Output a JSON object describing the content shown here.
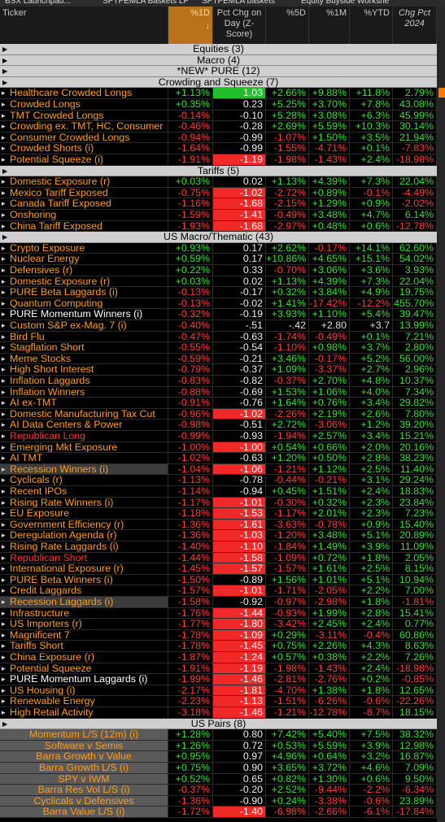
{
  "tabs": [
    "BSX Launchpad...",
    "SPTPEMLA Baskets LP",
    "SPTPEMLA baskets",
    "Equity Buyside Workshe"
  ],
  "header": {
    "columns": [
      "Ticker",
      "%1D",
      "Pct Chg on Day (Z-Score)",
      "%5D",
      "%1M",
      "%YTD",
      "Chg Pct 2024"
    ]
  },
  "groups": [
    {
      "title": "Equities (3)"
    },
    {
      "title": "Macro (4)"
    },
    {
      "title": "*NEW* PURE (12)"
    },
    {
      "title": "Crowding and Squeeze (7)",
      "rows": [
        {
          "name": "Healthcare Crowded Longs",
          "values": [
            "+1.13%",
            "1.03",
            "+2.66%",
            "+9.88%",
            "+11.8%",
            "2.79%"
          ]
        },
        {
          "name": "Crowded Longs",
          "values": [
            "+0.35%",
            "0.23",
            "+5.25%",
            "+3.70%",
            "+7.8%",
            "43.08%"
          ]
        },
        {
          "name": "TMT Crowded Longs",
          "values": [
            "-0.14%",
            "-0.10",
            "+5.28%",
            "+3.08%",
            "+6.3%",
            "45.99%"
          ]
        },
        {
          "name": "Crowding ex. TMT, HC, Consumer",
          "values": [
            "-0.46%",
            "-0.28",
            "+2.69%",
            "+5.59%",
            "+10.3%",
            "30.14%"
          ]
        },
        {
          "name": "Consumer Crowded Longs",
          "values": [
            "-0.94%",
            "-0.99",
            "-1.07%",
            "+1.50%",
            "+3.5%",
            "21.94%"
          ]
        },
        {
          "name": "Crowded Shorts (i)",
          "values": [
            "-1.64%",
            "-0.99",
            "-1.55%",
            "-4.71%",
            "+0.1%",
            "-7.83%"
          ]
        },
        {
          "name": "Potential Squeeze (i)",
          "values": [
            "-1.91%",
            "-1.19",
            "-1.98%",
            "-1.43%",
            "+2.4%",
            "-18.98%"
          ]
        }
      ]
    },
    {
      "title": "Tariffs (5)",
      "rows": [
        {
          "name": "Domestic Exposure (r)",
          "values": [
            "+0.03%",
            "0.02",
            "+1.13%",
            "+4.39%",
            "+7.3%",
            "22.04%"
          ]
        },
        {
          "name": "Mexico Tariff Exposed",
          "values": [
            "-0.75%",
            "-1.02",
            "-2.72%",
            "+0.89%",
            "-0.1%",
            "-4.49%"
          ]
        },
        {
          "name": "Canada Tariff Exposed",
          "values": [
            "-1.16%",
            "-1.68",
            "-2.15%",
            "+1.29%",
            "+0.9%",
            "-2.02%"
          ]
        },
        {
          "name": "Onshoring",
          "values": [
            "-1.59%",
            "-1.41",
            "-0.49%",
            "+3.48%",
            "+4.7%",
            "6.14%"
          ]
        },
        {
          "name": "China Tariff Exposed",
          "values": [
            "-1.93%",
            "-1.68",
            "-2.97%",
            "+0.48%",
            "+0.6%",
            "-12.78%"
          ]
        }
      ]
    },
    {
      "title": "US Macro/Thematic (43)",
      "rows": [
        {
          "name": "Crypto Exposure",
          "values": [
            "+0.93%",
            "0.17",
            "+2.62%",
            "-0.17%",
            "+14.1%",
            "62.60%"
          ]
        },
        {
          "name": "Nuclear Energy",
          "values": [
            "+0.59%",
            "0.17",
            "+10.86%",
            "+4.65%",
            "+15.1%",
            "54.02%"
          ]
        },
        {
          "name": "Defensives (r)",
          "values": [
            "+0.22%",
            "0.33",
            "-0.70%",
            "+3.06%",
            "+3.6%",
            "3.93%"
          ]
        },
        {
          "name": "Domestic Exposure (r)",
          "values": [
            "+0.03%",
            "0.02",
            "+1.13%",
            "+4.39%",
            "+7.3%",
            "22.04%"
          ]
        },
        {
          "name": "PURE Beta Laggards (i)",
          "values": [
            "-0.13%",
            "-0.17",
            "+0.32%",
            "+3.84%",
            "+4.9%",
            "19.75%"
          ]
        },
        {
          "name": "Quantum Computing",
          "values": [
            "-0.13%",
            "-0.02",
            "+1.41%",
            "-17.42%",
            "-12.2%",
            "455.70%"
          ]
        },
        {
          "name": "PURE Momentum Winners (i)",
          "name_color": "#ffffff",
          "values": [
            "-0.32%",
            "-0.19",
            "+3.93%",
            "+1.10%",
            "+5.4%",
            "39.47%"
          ]
        },
        {
          "name": "Custom S&P ex-Mag. 7 (i)",
          "values": [
            "-0.40%",
            "-.51",
            "-.42",
            "+2.80",
            "+3.7",
            "13.99%"
          ]
        },
        {
          "name": "Bird Flu",
          "values": [
            "-0.47%",
            "-0.63",
            "-1.74%",
            "-0.49%",
            "+0.1%",
            "7.21%"
          ]
        },
        {
          "name": "Stagflation Short",
          "values": [
            "-0.55%",
            "-0.54",
            "-1.10%",
            "+0.98%",
            "+3.7%",
            "2.80%"
          ]
        },
        {
          "name": "Meme Stocks",
          "values": [
            "-0.59%",
            "-0.21",
            "+3.46%",
            "-0.17%",
            "+5.2%",
            "56.00%"
          ]
        },
        {
          "name": "High Short Interest",
          "values": [
            "-0.79%",
            "-0.37",
            "+1.09%",
            "-3.37%",
            "+2.7%",
            "2.96%"
          ]
        },
        {
          "name": "Inflation Laggards",
          "values": [
            "-0.83%",
            "-0.82",
            "-0.37%",
            "+2.70%",
            "+4.8%",
            "10.37%"
          ]
        },
        {
          "name": "Inflation Winners",
          "values": [
            "-0.88%",
            "-0.69",
            "+1.53%",
            "+1.06%",
            "+4.0%",
            "7.34%"
          ]
        },
        {
          "name": "AI ex-TMT",
          "values": [
            "-0.91%",
            "-0.76",
            "+1.64%",
            "+0.76%",
            "+3.4%",
            "29.82%"
          ]
        },
        {
          "name": "Domestic Manufacturing Tax Cut",
          "values": [
            "-0.96%",
            "-1.02",
            "-2.26%",
            "+2.19%",
            "+2.6%",
            "7.80%"
          ]
        },
        {
          "name": "AI Data Centers & Power",
          "values": [
            "-0.98%",
            "-0.51",
            "+2.72%",
            "-3.06%",
            "+1.2%",
            "39.20%"
          ]
        },
        {
          "name": "Republican Long",
          "name_color": "#ff3030",
          "values": [
            "-0.99%",
            "-0.93",
            "-1.94%",
            "+2.57%",
            "+3.4%",
            "15.21%"
          ]
        },
        {
          "name": "Emerging Mkt Exposure",
          "values": [
            "-1.00%",
            "-1.00",
            "+0.54%",
            "+0.66%",
            "+2.0%",
            "20.16%"
          ]
        },
        {
          "name": "AI TMT",
          "values": [
            "-1.02%",
            "-0.63",
            "+1.20%",
            "+0.50%",
            "+2.8%",
            "38.23%"
          ]
        },
        {
          "name": "Recession Winners (i)",
          "name_bg": "#3c3c3c",
          "values": [
            "-1.04%",
            "-1.06",
            "-1.21%",
            "+1.12%",
            "+2.5%",
            "11.40%"
          ]
        },
        {
          "name": "Cyclicals (r)",
          "values": [
            "-1.13%",
            "-0.78",
            "-0.44%",
            "-0.21%",
            "+3.1%",
            "29.24%"
          ]
        },
        {
          "name": "Recent IPOs",
          "values": [
            "-1.14%",
            "-0.94",
            "+0.45%",
            "+1.51%",
            "+2.4%",
            "18.83%"
          ]
        },
        {
          "name": "Rising Rate Winners (i)",
          "values": [
            "-1.17%",
            "-1.01",
            "-0.30%",
            "+0.32%",
            "+2.3%",
            "23.84%"
          ]
        },
        {
          "name": "EU Exposure",
          "values": [
            "-1.18%",
            "-1.53",
            "-1.17%",
            "+2.01%",
            "+2.3%",
            "7.23%"
          ]
        },
        {
          "name": "Government Efficiency (r)",
          "values": [
            "-1.36%",
            "-1.61",
            "-3.63%",
            "-0.78%",
            "+0.9%",
            "15.40%"
          ]
        },
        {
          "name": "Deregulation Agenda (r)",
          "values": [
            "-1.36%",
            "-1.03",
            "-1.20%",
            "+3.48%",
            "+5.1%",
            "20.89%"
          ]
        },
        {
          "name": "Rising Rate Laggards (i)",
          "values": [
            "-1.40%",
            "-1.10",
            "-1.84%",
            "+1.49%",
            "+3.9%",
            "11.09%"
          ]
        },
        {
          "name": "Republican Short",
          "name_color": "#ff3030",
          "values": [
            "-1.44%",
            "-1.58",
            "-1.09%",
            "+0.72%",
            "+1.8%",
            "2.05%"
          ]
        },
        {
          "name": "International Exposure (r)",
          "values": [
            "-1.45%",
            "-1.57",
            "-1.57%",
            "+1.61%",
            "+2.5%",
            "8.15%"
          ]
        },
        {
          "name": "PURE Beta Winners (i)",
          "values": [
            "-1.50%",
            "-0.89",
            "+1.56%",
            "+1.01%",
            "+5.1%",
            "10.94%"
          ]
        },
        {
          "name": "Credit Laggards",
          "values": [
            "-1.57%",
            "-1.01",
            "-1.71%",
            "-2.05%",
            "+2.2%",
            "7.00%"
          ]
        },
        {
          "name": "Recession Laggards (i)",
          "name_bg": "#3c3c3c",
          "values": [
            "-1.58%",
            "-0.92",
            "-0.97%",
            "-2.98%",
            "+1.8%",
            "-1.81%"
          ]
        },
        {
          "name": "Infrastructure",
          "values": [
            "-1.76%",
            "-1.44",
            "-0.93%",
            "+1.99%",
            "+2.8%",
            "15.41%"
          ]
        },
        {
          "name": "US Importers (r)",
          "values": [
            "-1.77%",
            "-1.80",
            "-3.42%",
            "+2.45%",
            "+2.4%",
            "0.77%"
          ]
        },
        {
          "name": "Magnificent 7",
          "values": [
            "-1.78%",
            "-1.09",
            "+0.29%",
            "-3.11%",
            "-0.4%",
            "60.86%"
          ]
        },
        {
          "name": "Tariffs Short",
          "values": [
            "-1.78%",
            "-1.45",
            "+0.75%",
            "+2.26%",
            "+4.3%",
            "8.63%"
          ]
        },
        {
          "name": "China Exposure (r)",
          "values": [
            "-1.87%",
            "-1.24",
            "+0.57%",
            "+0.38%",
            "+2.2%",
            "7.26%"
          ]
        },
        {
          "name": "Potential Squeeze",
          "values": [
            "-1.91%",
            "-1.19",
            "-1.98%",
            "-1.43%",
            "+2.4%",
            "-18.98%"
          ]
        },
        {
          "name": "PURE Momentum Laggards (i)",
          "name_color": "#ffffff",
          "values": [
            "-1.99%",
            "-1.46",
            "-2.81%",
            "-2.76%",
            "+0.2%",
            "-0.85%"
          ]
        },
        {
          "name": "US Housing (i)",
          "values": [
            "-2.17%",
            "-1.81",
            "-4.70%",
            "+1.38%",
            "+1.8%",
            "12.65%"
          ]
        },
        {
          "name": "Renewable Energy",
          "values": [
            "-2.23%",
            "-1.13",
            "-1.51%",
            "-6.26%",
            "-0.6%",
            "-22.26%"
          ]
        },
        {
          "name": "High Retail Activity",
          "values": [
            "-3.18%",
            "-1.46",
            "-1.21%",
            "-12.78%",
            "-8.7%",
            "18.15%"
          ]
        }
      ]
    },
    {
      "title": "US Pairs (8)",
      "pairs": true,
      "rows": [
        {
          "name": "Momentum L/S (12m) (i)",
          "values": [
            "+1.28%",
            "0.80",
            "+7.42%",
            "+5.40%",
            "+7.5%",
            "38.32%"
          ]
        },
        {
          "name": "Software v Semis",
          "values": [
            "+1.26%",
            "0.72",
            "+0.53%",
            "+5.59%",
            "+3.9%",
            "12.98%"
          ]
        },
        {
          "name": "Barra Growth v Value",
          "values": [
            "+0.95%",
            "0.97",
            "+4.96%",
            "+0.64%",
            "+3.2%",
            "16.87%"
          ]
        },
        {
          "name": "Barra Growth L/S (i)",
          "values": [
            "+0.75%",
            "0.90",
            "+3.65%",
            "+3.72%",
            "+4.6%",
            "7.09%"
          ]
        },
        {
          "name": "SPY v IWM",
          "values": [
            "+0.52%",
            "0.65",
            "+0.82%",
            "+1.30%",
            "+0.6%",
            "9.50%"
          ]
        },
        {
          "name": "Barra Res Vol L/S (i)",
          "values": [
            "-0.37%",
            "-0.20",
            "+2.52%",
            "-9.44%",
            "-2.2%",
            "-6.34%"
          ]
        },
        {
          "name": "Cyclicals v Defensives",
          "values": [
            "-1.36%",
            "-0.90",
            "+0.24%",
            "-3.38%",
            "-0.6%",
            "23.89%"
          ]
        },
        {
          "name": "Barra Value L/S (i)",
          "values": [
            "-1.72%",
            "-1.40",
            "-6.98%",
            "-2.66%",
            "-6.1%",
            "-17.84%"
          ]
        }
      ]
    }
  ]
}
